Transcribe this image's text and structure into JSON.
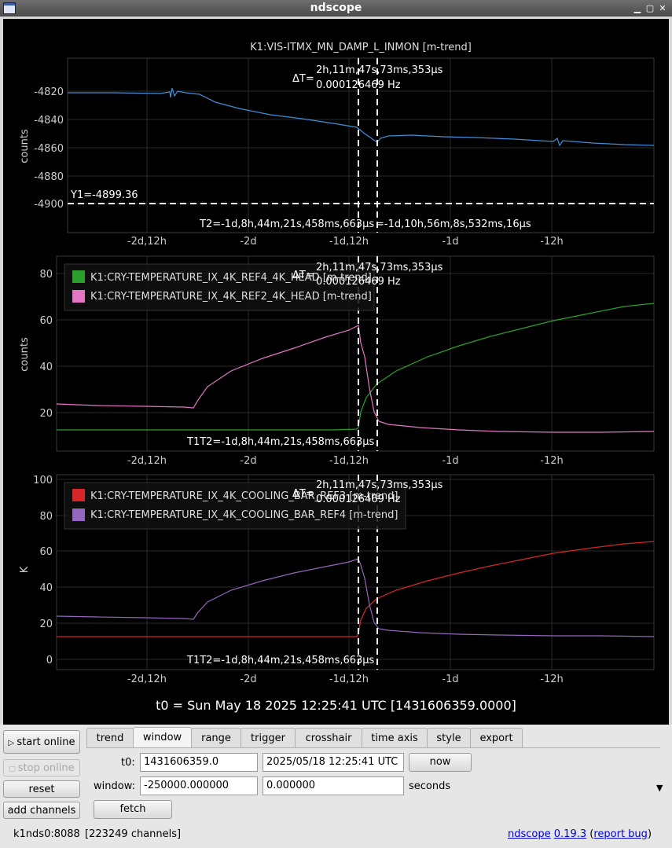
{
  "window": {
    "title": "ndscope",
    "min": "▁",
    "max": "▢",
    "close": "✕"
  },
  "plots": [
    {
      "title": "K1:VIS-ITMX_MN_DAMP_L_INMON [m-trend]",
      "ylabel": "counts",
      "yticks": [
        "-4820",
        "-4840",
        "-4860",
        "-4880",
        "-4900"
      ],
      "xticks": [
        "-2d,12h",
        "-2d",
        "-1d,12h",
        "-1d",
        "-12h"
      ],
      "delta_label": "ΔT=",
      "delta_t": "2h,11m,47s,73ms,353µs",
      "delta_f": "0.000126469 Hz",
      "y1_label": "Y1=-4899.36",
      "t1_label": "T2=-1d,8h,44m,21s,458ms,663µs",
      "t2_label": "=-1d,10h,56m,8s,532ms,16µs",
      "series_color": "#3f8fd8"
    },
    {
      "ylabel": "counts",
      "yticks": [
        "80",
        "60",
        "40",
        "20"
      ],
      "xticks": [
        "-2d,12h",
        "-2d",
        "-1d,12h",
        "-1d",
        "-12h"
      ],
      "legend": [
        {
          "name": "K1:CRY-TEMPERATURE_IX_4K_REF4_4K_HEAD [m-trend]",
          "color": "#2ca02c"
        },
        {
          "name": "K1:CRY-TEMPERATURE_IX_4K_REF2_4K_HEAD [m-trend]",
          "color": "#e377c2"
        }
      ],
      "delta_label": "ΔT=",
      "delta_t": "2h,11m,47s,73ms,353µs",
      "delta_f": "0.000126469 Hz",
      "t_label": "T1T2=-1d,8h,44m,21s,458ms,663µs"
    },
    {
      "ylabel": "K",
      "yticks": [
        "100",
        "80",
        "60",
        "40",
        "20",
        "0"
      ],
      "xticks": [
        "-2d,12h",
        "-2d",
        "-1d,12h",
        "-1d",
        "-12h"
      ],
      "legend": [
        {
          "name": "K1:CRY-TEMPERATURE_IX_4K_COOLING_BAR_REF3 [m-trend]",
          "color": "#d62728"
        },
        {
          "name": "K1:CRY-TEMPERATURE_IX_4K_COOLING_BAR_REF4 [m-trend]",
          "color": "#9467bd"
        }
      ],
      "delta_label": "ΔT=",
      "delta_t": "2h,11m,47s,73ms,353µs",
      "delta_f": "0.000126469 Hz",
      "t_label": "T1T2=-1d,8h,44m,21s,458ms,663µs"
    }
  ],
  "t0_line": "t0 = Sun May 18 2025 12:25:41 UTC [1431606359.0000]",
  "side_buttons": {
    "start": "start online",
    "stop": "stop online",
    "reset": "reset",
    "add": "add channels"
  },
  "tabs": [
    "trend",
    "window",
    "range",
    "trigger",
    "crosshair",
    "time axis",
    "style",
    "export"
  ],
  "active_tab": "window",
  "window_tab": {
    "t0_label": "t0:",
    "t0_gps": "1431606359.0",
    "t0_utc": "2025/05/18 12:25:41 UTC",
    "now": "now",
    "window_label": "window:",
    "window_start": "-250000.000000",
    "window_end": "0.000000",
    "units": "seconds",
    "fetch": "fetch"
  },
  "status": {
    "server": "k1nds0:8088",
    "channels": "[223249 channels]",
    "app": "ndscope",
    "version": "0.19.3",
    "report_open": "(",
    "report": "report bug",
    "report_close": ")"
  }
}
